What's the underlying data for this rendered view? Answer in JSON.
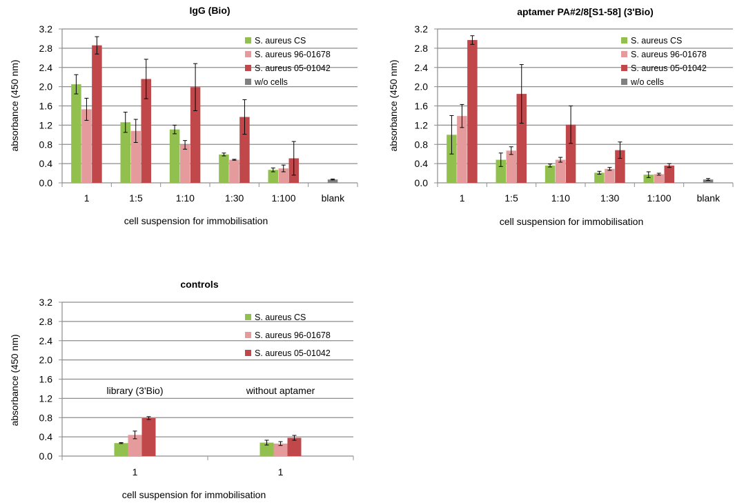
{
  "colors": {
    "cs": "#92c04e",
    "s96": "#e59b9b",
    "s05": "#c0484b",
    "wo": "#808080",
    "grid": "#8c8c8c",
    "axis": "#8c8c8c"
  },
  "chart_data": [
    {
      "type": "bar",
      "title": "IgG (Bio)",
      "xlabel": "cell suspension for immobilisation",
      "ylabel": "absorbance (450 nm)",
      "ylim": [
        0,
        3.2
      ],
      "yticks": [
        "0.0",
        "0.4",
        "0.8",
        "1.2",
        "1.6",
        "2.0",
        "2.4",
        "2.8",
        "3.2"
      ],
      "grid": true,
      "legend": "top-right",
      "categories": [
        "1",
        "1:5",
        "1:10",
        "1:30",
        "1:100",
        "blank"
      ],
      "series": [
        {
          "name": "S. aureus CS",
          "color_key": "cs",
          "values": [
            2.05,
            1.26,
            1.11,
            0.59,
            0.27,
            null
          ],
          "errors": [
            0.2,
            0.21,
            0.09,
            0.03,
            0.04,
            null
          ]
        },
        {
          "name": "S. aureus 96-01678",
          "color_key": "s96",
          "values": [
            1.53,
            1.08,
            0.79,
            0.48,
            0.3,
            null
          ],
          "errors": [
            0.23,
            0.24,
            0.09,
            0.01,
            0.07,
            null
          ]
        },
        {
          "name": "S. aureus 05-01042",
          "color_key": "s05",
          "values": [
            2.86,
            2.16,
            1.99,
            1.37,
            0.51,
            null
          ],
          "errors": [
            0.18,
            0.41,
            0.49,
            0.36,
            0.35,
            null
          ]
        },
        {
          "name": "w/o cells",
          "color_key": "wo",
          "values": [
            null,
            null,
            null,
            null,
            null,
            0.07
          ],
          "errors": [
            null,
            null,
            null,
            null,
            null,
            0.01
          ]
        }
      ]
    },
    {
      "type": "bar",
      "title": "aptamer PA#2/8[S1-58] (3'Bio)",
      "xlabel": "cell suspension for immobilisation",
      "ylabel": "absorbance (450 nm)",
      "ylim": [
        0,
        3.2
      ],
      "yticks": [
        "0.0",
        "0.4",
        "0.8",
        "1.2",
        "1.6",
        "2.0",
        "2.4",
        "2.8",
        "3.2"
      ],
      "grid": true,
      "legend": "top-right",
      "categories": [
        "1",
        "1:5",
        "1:10",
        "1:30",
        "1:100",
        "blank"
      ],
      "series": [
        {
          "name": "S. aureus CS",
          "color_key": "cs",
          "values": [
            1.0,
            0.48,
            0.36,
            0.21,
            0.17,
            null
          ],
          "errors": [
            0.4,
            0.14,
            0.03,
            0.03,
            0.06,
            null
          ]
        },
        {
          "name": "S. aureus 96-01678",
          "color_key": "s96",
          "values": [
            1.39,
            0.67,
            0.48,
            0.29,
            0.18,
            null
          ],
          "errors": [
            0.24,
            0.08,
            0.05,
            0.03,
            0.02,
            null
          ]
        },
        {
          "name": "S. aureus 05-01042",
          "color_key": "s05",
          "values": [
            2.97,
            1.85,
            1.21,
            0.68,
            0.36,
            null
          ],
          "errors": [
            0.09,
            0.61,
            0.39,
            0.17,
            0.04,
            null
          ]
        },
        {
          "name": "w/o cells",
          "color_key": "wo",
          "values": [
            null,
            null,
            null,
            null,
            null,
            0.07
          ],
          "errors": [
            null,
            null,
            null,
            null,
            null,
            0.02
          ]
        }
      ]
    },
    {
      "type": "bar",
      "title": "controls",
      "xlabel": "cell suspension for immobilisation",
      "ylabel": "absorbance (450 nm)",
      "ylim": [
        0,
        3.2
      ],
      "yticks": [
        "0.0",
        "0.4",
        "0.8",
        "1.2",
        "1.6",
        "2.0",
        "2.4",
        "2.8",
        "3.2"
      ],
      "grid": true,
      "legend": "top-right",
      "categories": [
        "1",
        "1"
      ],
      "annotations": [
        "library (3'Bio)",
        "without aptamer"
      ],
      "series": [
        {
          "name": "S. aureus CS",
          "color_key": "cs",
          "values": [
            0.27,
            0.28
          ],
          "errors": [
            0.01,
            0.05
          ]
        },
        {
          "name": "S. aureus 96-01678",
          "color_key": "s96",
          "values": [
            0.44,
            0.26
          ],
          "errors": [
            0.08,
            0.04
          ]
        },
        {
          "name": "S. aureus 05-01042",
          "color_key": "s05",
          "values": [
            0.79,
            0.38
          ],
          "errors": [
            0.03,
            0.05
          ]
        }
      ]
    }
  ]
}
